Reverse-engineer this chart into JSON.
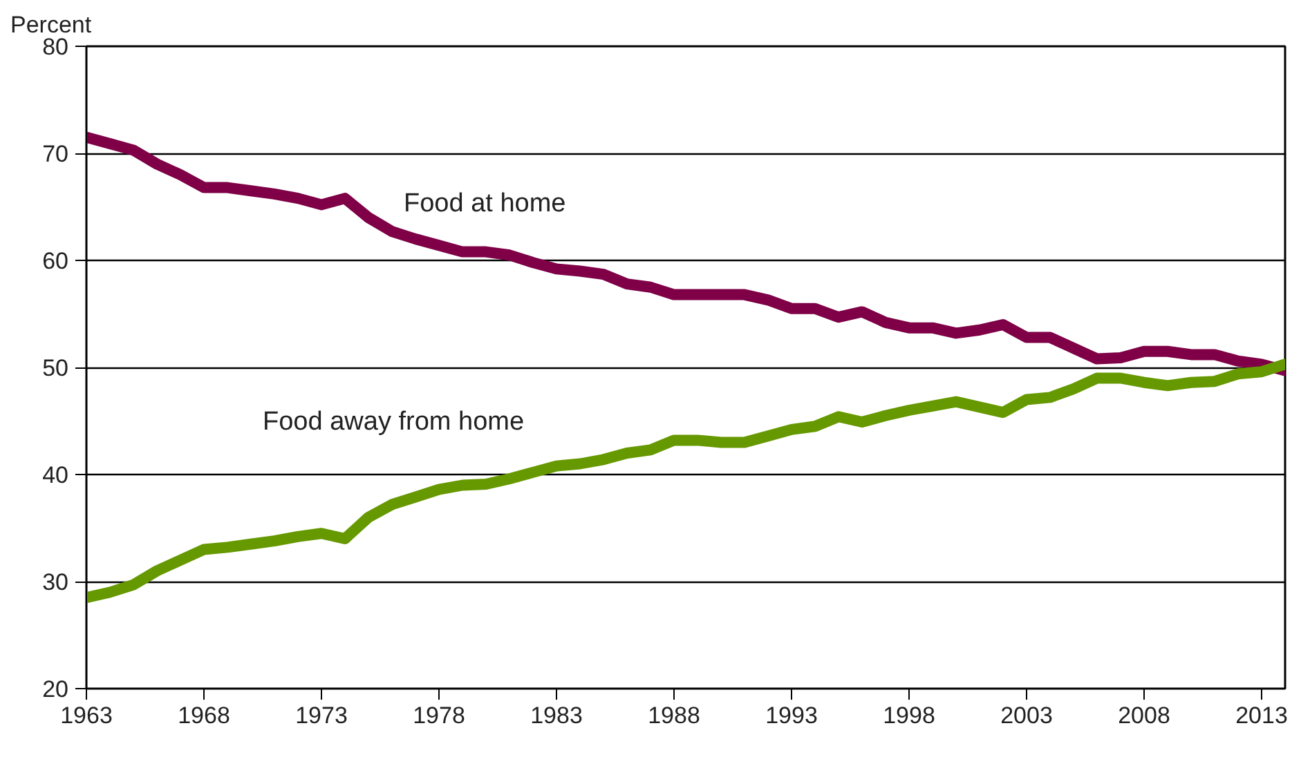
{
  "chart_data": {
    "type": "line",
    "ylabel": "Percent",
    "x": [
      1963,
      1964,
      1965,
      1966,
      1967,
      1968,
      1969,
      1970,
      1971,
      1972,
      1973,
      1974,
      1975,
      1976,
      1977,
      1978,
      1979,
      1980,
      1981,
      1982,
      1983,
      1984,
      1985,
      1986,
      1987,
      1988,
      1989,
      1990,
      1991,
      1992,
      1993,
      1994,
      1995,
      1996,
      1997,
      1998,
      1999,
      2000,
      2001,
      2002,
      2003,
      2004,
      2005,
      2006,
      2007,
      2008,
      2009,
      2010,
      2011,
      2012,
      2013,
      2014
    ],
    "series": [
      {
        "name": "Food at home",
        "color": "#7f0046",
        "values": [
          71.5,
          70.9,
          70.3,
          69,
          68,
          66.8,
          66.8,
          66.5,
          66.2,
          65.8,
          65.2,
          65.8,
          64,
          62.7,
          62,
          61.4,
          60.8,
          60.8,
          60.5,
          59.8,
          59.2,
          59,
          58.7,
          57.8,
          57.5,
          56.8,
          56.8,
          56.8,
          56.8,
          56.3,
          55.5,
          55.5,
          54.7,
          55.2,
          54.2,
          53.7,
          53.7,
          53.2,
          53.5,
          54,
          52.8,
          52.8,
          51.8,
          50.8,
          50.9,
          51.5,
          51.5,
          51.2,
          51.2,
          50.6,
          50.3,
          49.7
        ]
      },
      {
        "name": "Food away from home",
        "color": "#669900",
        "values": [
          28.5,
          29,
          29.7,
          31,
          32,
          33,
          33.2,
          33.5,
          33.8,
          34.2,
          34.5,
          34,
          36,
          37.2,
          37.9,
          38.6,
          39,
          39.1,
          39.6,
          40.2,
          40.8,
          41,
          41.4,
          42,
          42.3,
          43.2,
          43.2,
          43,
          43,
          43.6,
          44.2,
          44.5,
          45.4,
          44.9,
          45.5,
          46,
          46.4,
          46.8,
          46.3,
          45.8,
          47,
          47.2,
          48,
          49,
          49,
          48.6,
          48.3,
          48.6,
          48.7,
          49.4,
          49.6,
          50.3
        ]
      }
    ],
    "xlim": [
      1963,
      2014
    ],
    "xticks": [
      1963,
      1968,
      1973,
      1978,
      1983,
      1988,
      1993,
      1998,
      2003,
      2008,
      2013
    ],
    "ylim": [
      20,
      80
    ],
    "yticks": [
      20,
      30,
      40,
      50,
      60,
      70,
      80
    ],
    "grid": "y",
    "marker": "none",
    "line_style": "solid"
  }
}
